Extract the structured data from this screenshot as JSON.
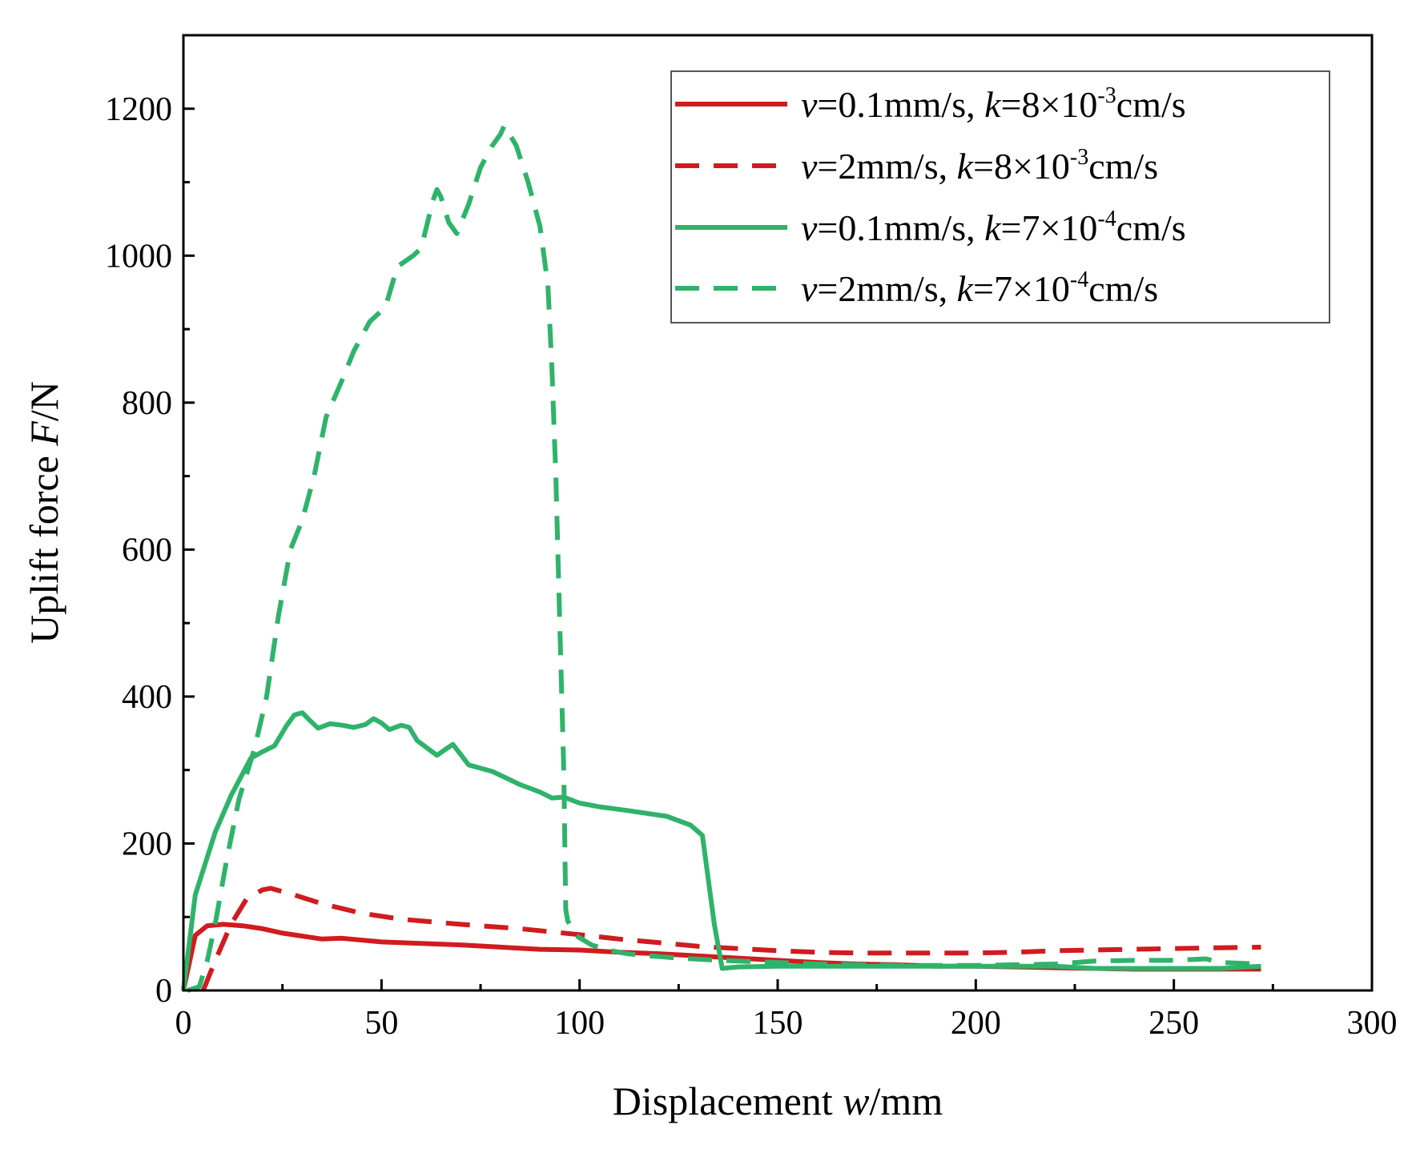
{
  "chart_data": {
    "type": "line",
    "title": "",
    "xlabel": {
      "prefix": "Displacement ",
      "var": "w",
      "suffix": "/mm"
    },
    "ylabel": {
      "prefix": "Uplift force ",
      "var": "F",
      "suffix": "/N"
    },
    "xlim": [
      0,
      300
    ],
    "ylim": [
      0,
      1300
    ],
    "xticks": [
      0,
      50,
      100,
      150,
      200,
      250,
      300
    ],
    "yticks": [
      0,
      200,
      400,
      600,
      800,
      1000,
      1200
    ],
    "grid": false,
    "legend_position": "top-right",
    "series": [
      {
        "name": "v=0.1mm/s, k=8×10-3cm/s",
        "legend": {
          "v": "v",
          "v_val": "=0.1mm/s, ",
          "k": "k",
          "k_val": "=8×10",
          "exp": "-3",
          "unit": "cm/s"
        },
        "color": "#d01c1f",
        "style": "solid",
        "points": [
          [
            0,
            0
          ],
          [
            3,
            75
          ],
          [
            6,
            88
          ],
          [
            10,
            90
          ],
          [
            15,
            88
          ],
          [
            20,
            84
          ],
          [
            25,
            78
          ],
          [
            30,
            74
          ],
          [
            35,
            70
          ],
          [
            40,
            71
          ],
          [
            50,
            66
          ],
          [
            60,
            64
          ],
          [
            70,
            62
          ],
          [
            80,
            59
          ],
          [
            90,
            56
          ],
          [
            100,
            55
          ],
          [
            110,
            52
          ],
          [
            120,
            50
          ],
          [
            130,
            47
          ],
          [
            140,
            44
          ],
          [
            150,
            41
          ],
          [
            160,
            38
          ],
          [
            170,
            36
          ],
          [
            180,
            35
          ],
          [
            190,
            33
          ],
          [
            200,
            33
          ],
          [
            210,
            32
          ],
          [
            220,
            31
          ],
          [
            230,
            30
          ],
          [
            240,
            29
          ],
          [
            250,
            29
          ],
          [
            260,
            29
          ],
          [
            272,
            29
          ]
        ]
      },
      {
        "name": "v=2mm/s, k=8×10-3cm/s",
        "legend": {
          "v": "v",
          "v_val": "=2mm/s, ",
          "k": "k",
          "k_val": "=8×10",
          "exp": "-3",
          "unit": "cm/s"
        },
        "color": "#d01c1f",
        "style": "dashed",
        "points": [
          [
            5,
            0
          ],
          [
            8,
            40
          ],
          [
            12,
            90
          ],
          [
            16,
            125
          ],
          [
            20,
            137
          ],
          [
            22,
            139
          ],
          [
            28,
            130
          ],
          [
            35,
            118
          ],
          [
            45,
            105
          ],
          [
            55,
            97
          ],
          [
            70,
            90
          ],
          [
            85,
            84
          ],
          [
            100,
            76
          ],
          [
            110,
            70
          ],
          [
            120,
            65
          ],
          [
            130,
            60
          ],
          [
            140,
            57
          ],
          [
            150,
            54
          ],
          [
            160,
            52
          ],
          [
            170,
            51
          ],
          [
            180,
            51
          ],
          [
            190,
            51
          ],
          [
            200,
            51
          ],
          [
            210,
            52
          ],
          [
            220,
            54
          ],
          [
            230,
            55
          ],
          [
            240,
            56
          ],
          [
            250,
            57
          ],
          [
            260,
            58
          ],
          [
            272,
            59
          ]
        ]
      },
      {
        "name": "v=0.1mm/s, k=7×10-4cm/s",
        "legend": {
          "v": "v",
          "v_val": "=0.1mm/s, ",
          "k": "k",
          "k_val": "=7×10",
          "exp": "-4",
          "unit": "cm/s"
        },
        "color": "#2fb36b",
        "style": "solid",
        "points": [
          [
            0,
            0
          ],
          [
            3,
            130
          ],
          [
            8,
            215
          ],
          [
            12,
            265
          ],
          [
            17,
            316
          ],
          [
            20,
            325
          ],
          [
            23,
            333
          ],
          [
            26,
            360
          ],
          [
            28,
            375
          ],
          [
            30,
            378
          ],
          [
            32,
            367
          ],
          [
            34,
            357
          ],
          [
            37,
            363
          ],
          [
            40,
            361
          ],
          [
            43,
            358
          ],
          [
            46,
            362
          ],
          [
            48,
            370
          ],
          [
            50,
            364
          ],
          [
            52,
            355
          ],
          [
            55,
            361
          ],
          [
            57,
            358
          ],
          [
            59,
            340
          ],
          [
            64,
            320
          ],
          [
            68,
            335
          ],
          [
            72,
            307
          ],
          [
            78,
            298
          ],
          [
            85,
            280
          ],
          [
            90,
            270
          ],
          [
            93,
            262
          ],
          [
            96,
            263
          ],
          [
            100,
            255
          ],
          [
            105,
            250
          ],
          [
            112,
            245
          ],
          [
            122,
            237
          ],
          [
            128,
            225
          ],
          [
            131,
            211
          ],
          [
            134,
            90
          ],
          [
            136,
            30
          ],
          [
            140,
            32
          ],
          [
            150,
            33
          ],
          [
            160,
            33
          ],
          [
            180,
            33
          ],
          [
            200,
            33
          ],
          [
            210,
            33
          ],
          [
            220,
            33
          ],
          [
            230,
            30
          ],
          [
            250,
            30
          ],
          [
            262,
            30
          ],
          [
            272,
            33
          ]
        ]
      },
      {
        "name": "v=2mm/s, k=7×10-4cm/s",
        "legend": {
          "v": "v",
          "v_val": "=2mm/s, ",
          "k": "k",
          "k_val": "=7×10",
          "exp": "-4",
          "unit": "cm/s"
        },
        "color": "#2fb36b",
        "style": "dashed",
        "points": [
          [
            1,
            0
          ],
          [
            4,
            5
          ],
          [
            6,
            40
          ],
          [
            8,
            90
          ],
          [
            11,
            180
          ],
          [
            14,
            260
          ],
          [
            18,
            330
          ],
          [
            21,
            400
          ],
          [
            24,
            510
          ],
          [
            27,
            600
          ],
          [
            30,
            640
          ],
          [
            33,
            700
          ],
          [
            36,
            780
          ],
          [
            40,
            830
          ],
          [
            43,
            870
          ],
          [
            47,
            910
          ],
          [
            51,
            930
          ],
          [
            54,
            985
          ],
          [
            58,
            1000
          ],
          [
            60,
            1010
          ],
          [
            63,
            1075
          ],
          [
            64,
            1090
          ],
          [
            65,
            1080
          ],
          [
            67,
            1045
          ],
          [
            69,
            1030
          ],
          [
            72,
            1070
          ],
          [
            75,
            1120
          ],
          [
            78,
            1150
          ],
          [
            80,
            1165
          ],
          [
            81,
            1177
          ],
          [
            84,
            1150
          ],
          [
            87,
            1100
          ],
          [
            90,
            1040
          ],
          [
            92,
            960
          ],
          [
            93,
            850
          ],
          [
            94,
            700
          ],
          [
            95,
            500
          ],
          [
            96,
            300
          ],
          [
            96.5,
            110
          ],
          [
            97,
            95
          ],
          [
            99,
            75
          ],
          [
            103,
            62
          ],
          [
            107,
            55
          ],
          [
            112,
            50
          ],
          [
            118,
            47
          ],
          [
            125,
            44
          ],
          [
            132,
            42
          ],
          [
            140,
            40
          ],
          [
            150,
            38
          ],
          [
            160,
            36
          ],
          [
            170,
            35
          ],
          [
            180,
            34
          ],
          [
            190,
            34
          ],
          [
            200,
            34
          ],
          [
            210,
            35
          ],
          [
            220,
            36
          ],
          [
            230,
            40
          ],
          [
            240,
            41
          ],
          [
            250,
            41
          ],
          [
            258,
            43
          ],
          [
            262,
            38
          ],
          [
            272,
            36
          ]
        ]
      }
    ]
  }
}
